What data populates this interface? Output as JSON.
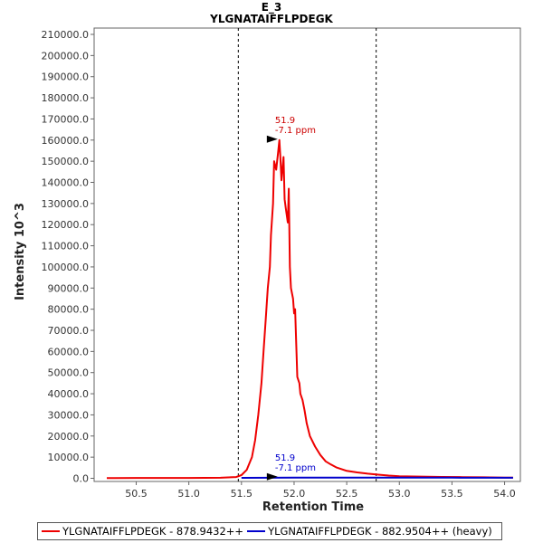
{
  "chart_data": {
    "type": "line",
    "title": "E_3",
    "subtitle": "YLGNATAIFFLPDEGK",
    "xlabel": "Retention Time",
    "ylabel": "Intensity 10^3",
    "xlim": [
      50.1,
      54.15
    ],
    "ylim": [
      -1500,
      213000
    ],
    "x_ticks": [
      50.5,
      51.0,
      51.5,
      52.0,
      52.5,
      53.0,
      53.5,
      54.0
    ],
    "x_tick_labels": [
      "50.5",
      "51.0",
      "51.5",
      "52.0",
      "52.5",
      "53.0",
      "53.5",
      "54.0"
    ],
    "y_ticks": [
      0,
      10000,
      20000,
      30000,
      40000,
      50000,
      60000,
      70000,
      80000,
      90000,
      100000,
      110000,
      120000,
      130000,
      140000,
      150000,
      160000,
      170000,
      180000,
      190000,
      200000,
      210000
    ],
    "y_tick_labels": [
      "0.0",
      "10000.0",
      "20000.0",
      "30000.0",
      "40000.0",
      "50000.0",
      "60000.0",
      "70000.0",
      "80000.0",
      "90000.0",
      "100000.0",
      "110000.0",
      "120000.0",
      "130000.0",
      "140000.0",
      "150000.0",
      "160000.0",
      "170000.0",
      "180000.0",
      "190000.0",
      "200000.0",
      "210000.0"
    ],
    "integration_bounds": [
      51.47,
      52.78
    ],
    "series": [
      {
        "name": "YLGNATAIFFLPDEGK - 878.9432++",
        "color": "#ee0000",
        "x": [
          50.22,
          50.5,
          51.0,
          51.3,
          51.45,
          51.5,
          51.55,
          51.6,
          51.63,
          51.66,
          51.69,
          51.71,
          51.73,
          51.75,
          51.77,
          51.78,
          51.8,
          51.81,
          51.83,
          51.85,
          51.86,
          51.87,
          51.88,
          51.9,
          51.91,
          51.92,
          51.94,
          51.95,
          51.96,
          51.97,
          51.99,
          52.0,
          52.01,
          52.03,
          52.05,
          52.06,
          52.08,
          52.1,
          52.12,
          52.15,
          52.2,
          52.25,
          52.3,
          52.35,
          52.4,
          52.5,
          52.6,
          52.7,
          52.8,
          52.9,
          53.0,
          53.2,
          53.4,
          53.6,
          53.8,
          54.0,
          54.08
        ],
        "y": [
          100,
          150,
          180,
          250,
          600,
          1500,
          4000,
          10000,
          18000,
          30000,
          45000,
          60000,
          75000,
          90000,
          100000,
          115000,
          130000,
          150000,
          146000,
          155000,
          160000,
          152000,
          141000,
          152000,
          132000,
          128000,
          121000,
          137000,
          100000,
          90000,
          85000,
          78000,
          80000,
          48000,
          45000,
          40000,
          37000,
          32000,
          26000,
          20000,
          15000,
          11000,
          8000,
          6500,
          5200,
          3500,
          2800,
          2200,
          1700,
          1300,
          1000,
          800,
          650,
          550,
          450,
          350,
          300
        ]
      },
      {
        "name": "YLGNATAIFFLPDEGK - 882.9504++ (heavy)",
        "color": "#0000cc",
        "x": [
          51.5,
          52.0,
          52.5,
          53.0,
          53.5,
          54.08
        ],
        "y": [
          200,
          300,
          350,
          320,
          280,
          250
        ]
      }
    ],
    "annotations": [
      {
        "series": 0,
        "x": 51.87,
        "y": 160000,
        "rt": "51.9",
        "ppm": "-7.1 ppm",
        "color": "#cc0000"
      },
      {
        "series": 1,
        "x": 51.87,
        "y": 300,
        "rt": "51.9",
        "ppm": "-7.1 ppm",
        "color": "#0000cc"
      }
    ]
  },
  "legend": {
    "items": [
      {
        "label": "YLGNATAIFFLPDEGK - 878.9432++",
        "color": "#ee0000"
      },
      {
        "label": "YLGNATAIFFLPDEGK - 882.9504++ (heavy)",
        "color": "#0000cc"
      }
    ]
  }
}
